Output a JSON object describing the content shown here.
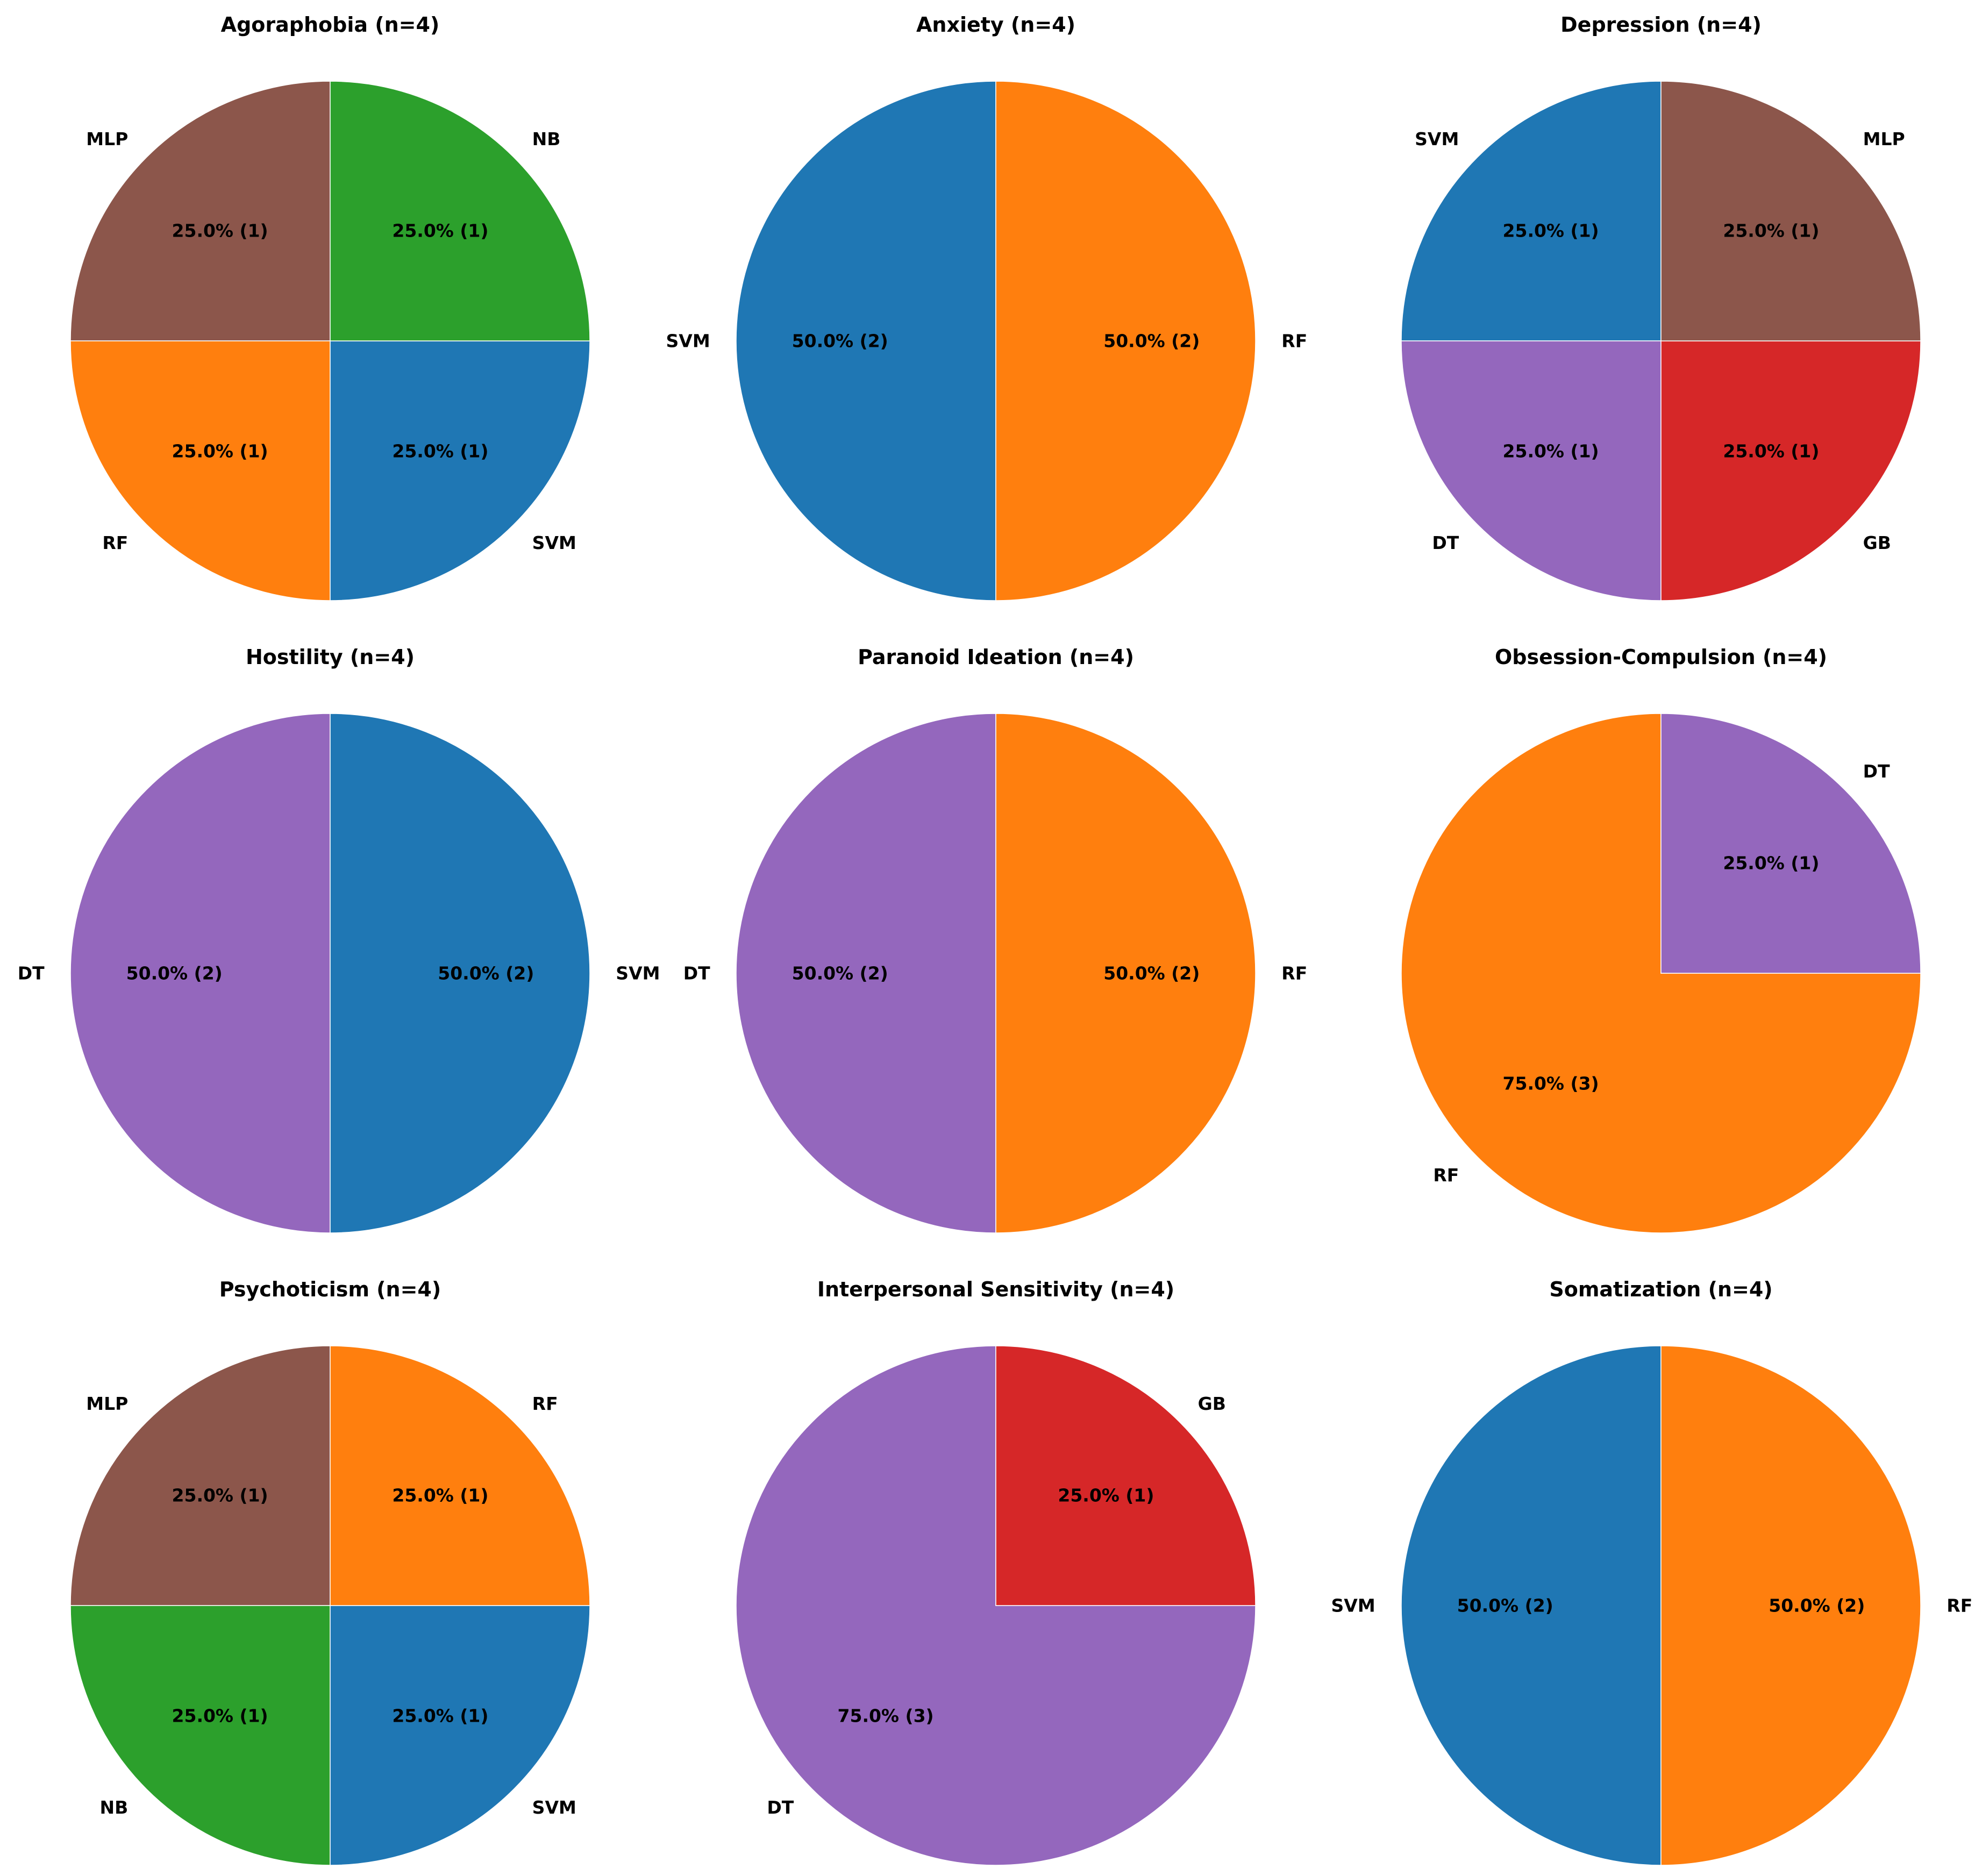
{
  "chart_data": [
    {
      "type": "pie",
      "title": "Agoraphobia (n=4)",
      "slices": [
        {
          "label": "MLP",
          "value": 1,
          "percent_label": "25.0% (1)",
          "color": "#8c564b"
        },
        {
          "label": "RF",
          "value": 1,
          "percent_label": "25.0% (1)",
          "color": "#ff7f0e"
        },
        {
          "label": "SVM",
          "value": 1,
          "percent_label": "25.0% (1)",
          "color": "#1f77b4"
        },
        {
          "label": "NB",
          "value": 1,
          "percent_label": "25.0% (1)",
          "color": "#2ca02c"
        }
      ]
    },
    {
      "type": "pie",
      "title": "Anxiety (n=4)",
      "slices": [
        {
          "label": "SVM",
          "value": 2,
          "percent_label": "50.0% (2)",
          "color": "#1f77b4"
        },
        {
          "label": "RF",
          "value": 2,
          "percent_label": "50.0% (2)",
          "color": "#ff7f0e"
        }
      ]
    },
    {
      "type": "pie",
      "title": "Depression (n=4)",
      "slices": [
        {
          "label": "SVM",
          "value": 1,
          "percent_label": "25.0% (1)",
          "color": "#1f77b4"
        },
        {
          "label": "DT",
          "value": 1,
          "percent_label": "25.0% (1)",
          "color": "#9467bd"
        },
        {
          "label": "GB",
          "value": 1,
          "percent_label": "25.0% (1)",
          "color": "#d62728"
        },
        {
          "label": "MLP",
          "value": 1,
          "percent_label": "25.0% (1)",
          "color": "#8c564b"
        }
      ]
    },
    {
      "type": "pie",
      "title": "Hostility (n=4)",
      "slices": [
        {
          "label": "DT",
          "value": 2,
          "percent_label": "50.0% (2)",
          "color": "#9467bd"
        },
        {
          "label": "SVM",
          "value": 2,
          "percent_label": "50.0% (2)",
          "color": "#1f77b4"
        }
      ]
    },
    {
      "type": "pie",
      "title": "Paranoid Ideation (n=4)",
      "slices": [
        {
          "label": "DT",
          "value": 2,
          "percent_label": "50.0% (2)",
          "color": "#9467bd"
        },
        {
          "label": "RF",
          "value": 2,
          "percent_label": "50.0% (2)",
          "color": "#ff7f0e"
        }
      ]
    },
    {
      "type": "pie",
      "title": "Obsession-Compulsion (n=4)",
      "slices": [
        {
          "label": "RF",
          "value": 3,
          "percent_label": "75.0% (3)",
          "color": "#ff7f0e"
        },
        {
          "label": "DT",
          "value": 1,
          "percent_label": "25.0% (1)",
          "color": "#9467bd"
        }
      ]
    },
    {
      "type": "pie",
      "title": "Psychoticism (n=4)",
      "slices": [
        {
          "label": "MLP",
          "value": 1,
          "percent_label": "25.0% (1)",
          "color": "#8c564b"
        },
        {
          "label": "NB",
          "value": 1,
          "percent_label": "25.0% (1)",
          "color": "#2ca02c"
        },
        {
          "label": "SVM",
          "value": 1,
          "percent_label": "25.0% (1)",
          "color": "#1f77b4"
        },
        {
          "label": "RF",
          "value": 1,
          "percent_label": "25.0% (1)",
          "color": "#ff7f0e"
        }
      ]
    },
    {
      "type": "pie",
      "title": "Interpersonal Sensitivity (n=4)",
      "slices": [
        {
          "label": "DT",
          "value": 3,
          "percent_label": "75.0% (3)",
          "color": "#9467bd"
        },
        {
          "label": "GB",
          "value": 1,
          "percent_label": "25.0% (1)",
          "color": "#d62728"
        }
      ]
    },
    {
      "type": "pie",
      "title": "Somatization (n=4)",
      "slices": [
        {
          "label": "SVM",
          "value": 2,
          "percent_label": "50.0% (2)",
          "color": "#1f77b4"
        },
        {
          "label": "RF",
          "value": 2,
          "percent_label": "50.0% (2)",
          "color": "#ff7f0e"
        }
      ]
    }
  ]
}
